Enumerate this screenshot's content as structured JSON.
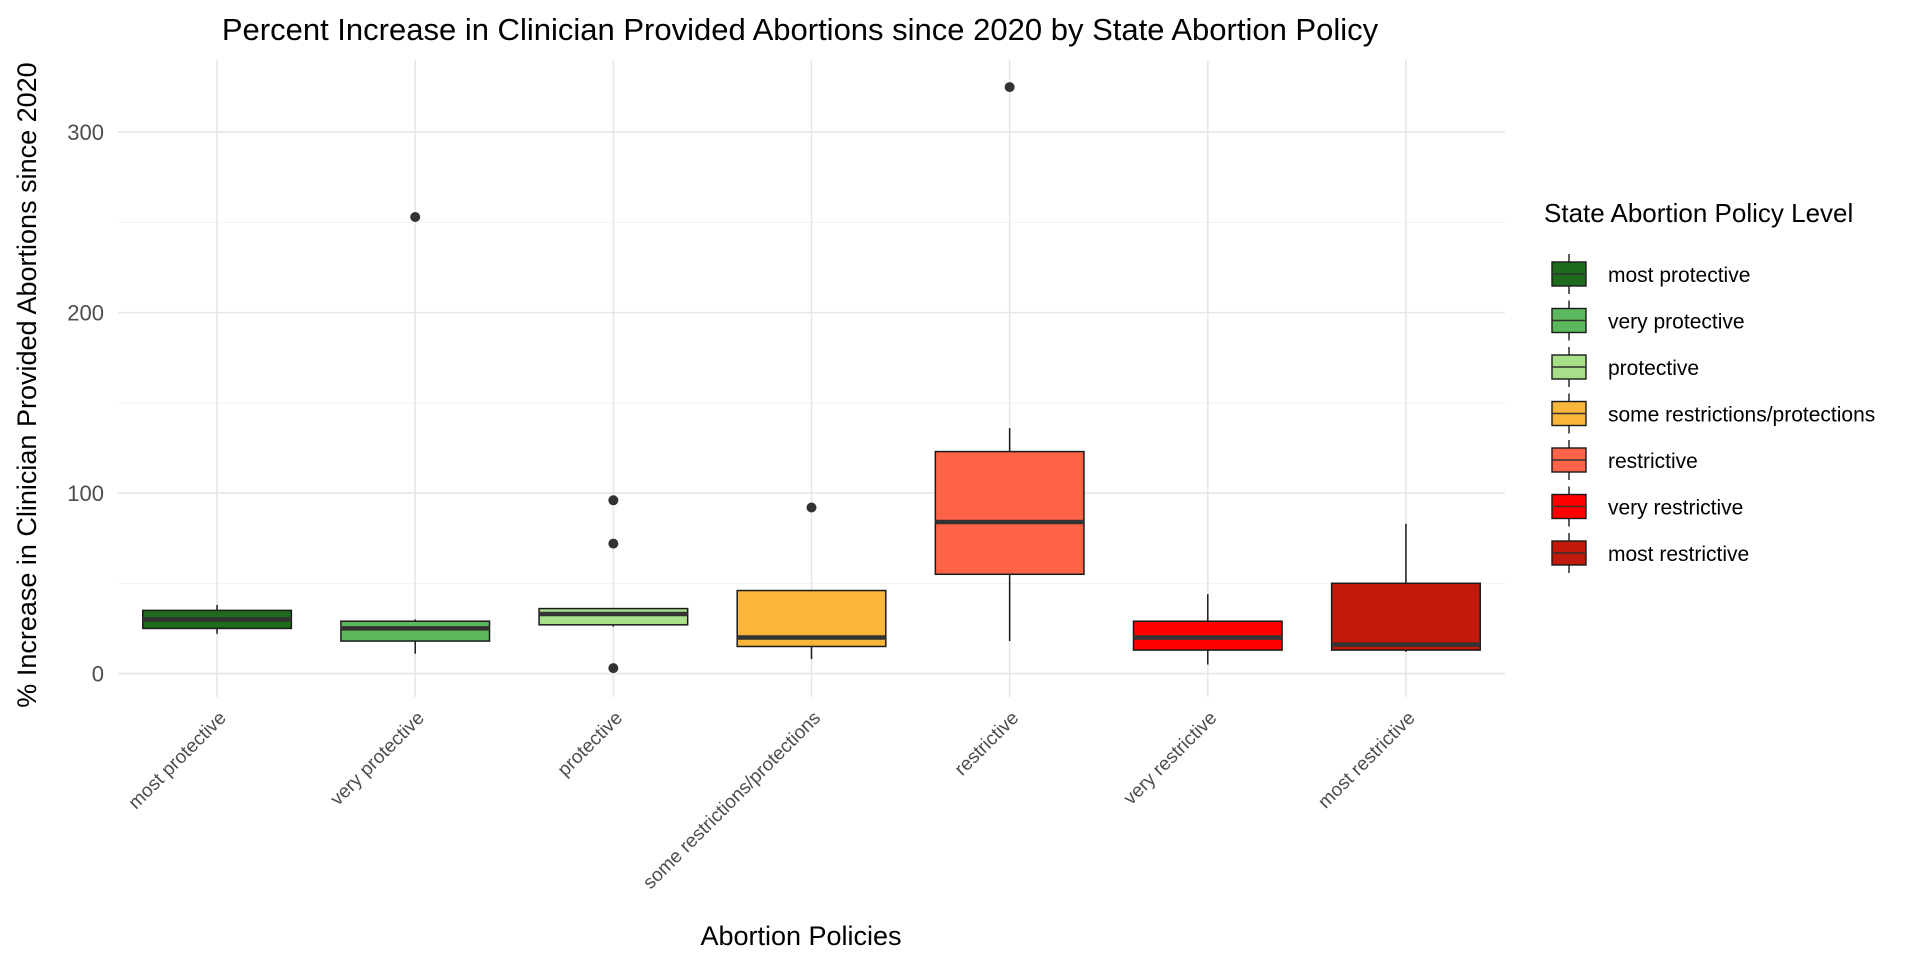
{
  "chart_data": {
    "type": "boxplot",
    "title": "Percent Increase in Clinician Provided Abortions since 2020 by State Abortion Policy",
    "xlabel": "Abortion Policies",
    "ylabel": "% Increase in Clinician Provided Abortions since 2020",
    "ylim": [
      -13,
      340
    ],
    "yticks": [
      0,
      100,
      200,
      300
    ],
    "ytick_labels": [
      "0",
      "100",
      "200",
      "300"
    ],
    "grid": true,
    "legend": {
      "title": "State Abortion Policy Level",
      "placement": "right",
      "entries": [
        "most protective",
        "very protective",
        "protective",
        "some restrictions/protections",
        "restrictive",
        "very restrictive",
        "most restrictive"
      ]
    },
    "categories": [
      "most protective",
      "very protective",
      "protective",
      "some restrictions/protections",
      "restrictive",
      "very restrictive",
      "most restrictive"
    ],
    "colors": [
      "#1e6b1e",
      "#5cb85c",
      "#a8e08a",
      "#f9b63a",
      "#ff6347",
      "#ff0000",
      "#c21a0a"
    ],
    "boxes": [
      {
        "name": "most protective",
        "whisker_low": 22,
        "q1": 25,
        "median": 30,
        "q3": 35,
        "whisker_high": 38,
        "outliers": []
      },
      {
        "name": "very protective",
        "whisker_low": 11,
        "q1": 18,
        "median": 25,
        "q3": 29,
        "whisker_high": 30,
        "outliers": [
          253
        ]
      },
      {
        "name": "protective",
        "whisker_low": 26,
        "q1": 27,
        "median": 33,
        "q3": 36,
        "whisker_high": 36,
        "outliers": [
          96,
          72,
          3
        ]
      },
      {
        "name": "some restrictions/protections",
        "whisker_low": 8,
        "q1": 15,
        "median": 20,
        "q3": 46,
        "whisker_high": 46,
        "outliers": [
          92
        ]
      },
      {
        "name": "restrictive",
        "whisker_low": 18,
        "q1": 55,
        "median": 84,
        "q3": 123,
        "whisker_high": 136,
        "outliers": [
          325
        ]
      },
      {
        "name": "very restrictive",
        "whisker_low": 5,
        "q1": 13,
        "median": 20,
        "q3": 29,
        "whisker_high": 44,
        "outliers": []
      },
      {
        "name": "most restrictive",
        "whisker_low": 12,
        "q1": 13,
        "median": 16,
        "q3": 50,
        "whisker_high": 83,
        "outliers": []
      }
    ]
  }
}
